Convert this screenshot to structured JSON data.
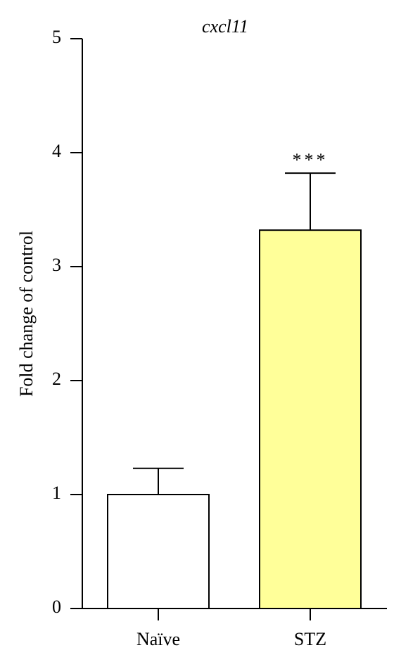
{
  "chart_data": {
    "type": "bar",
    "title": "cxcl11",
    "y_label": "Fold change of control",
    "categories": [
      "Naïve",
      "STZ"
    ],
    "values": [
      1.0,
      3.32
    ],
    "errors": [
      0.23,
      0.5
    ],
    "colors": [
      "#ffffff",
      "#ffff99"
    ],
    "significance": [
      null,
      "***"
    ],
    "ylim": [
      0,
      5
    ],
    "yticks": [
      0,
      1,
      2,
      3,
      4,
      5
    ]
  }
}
